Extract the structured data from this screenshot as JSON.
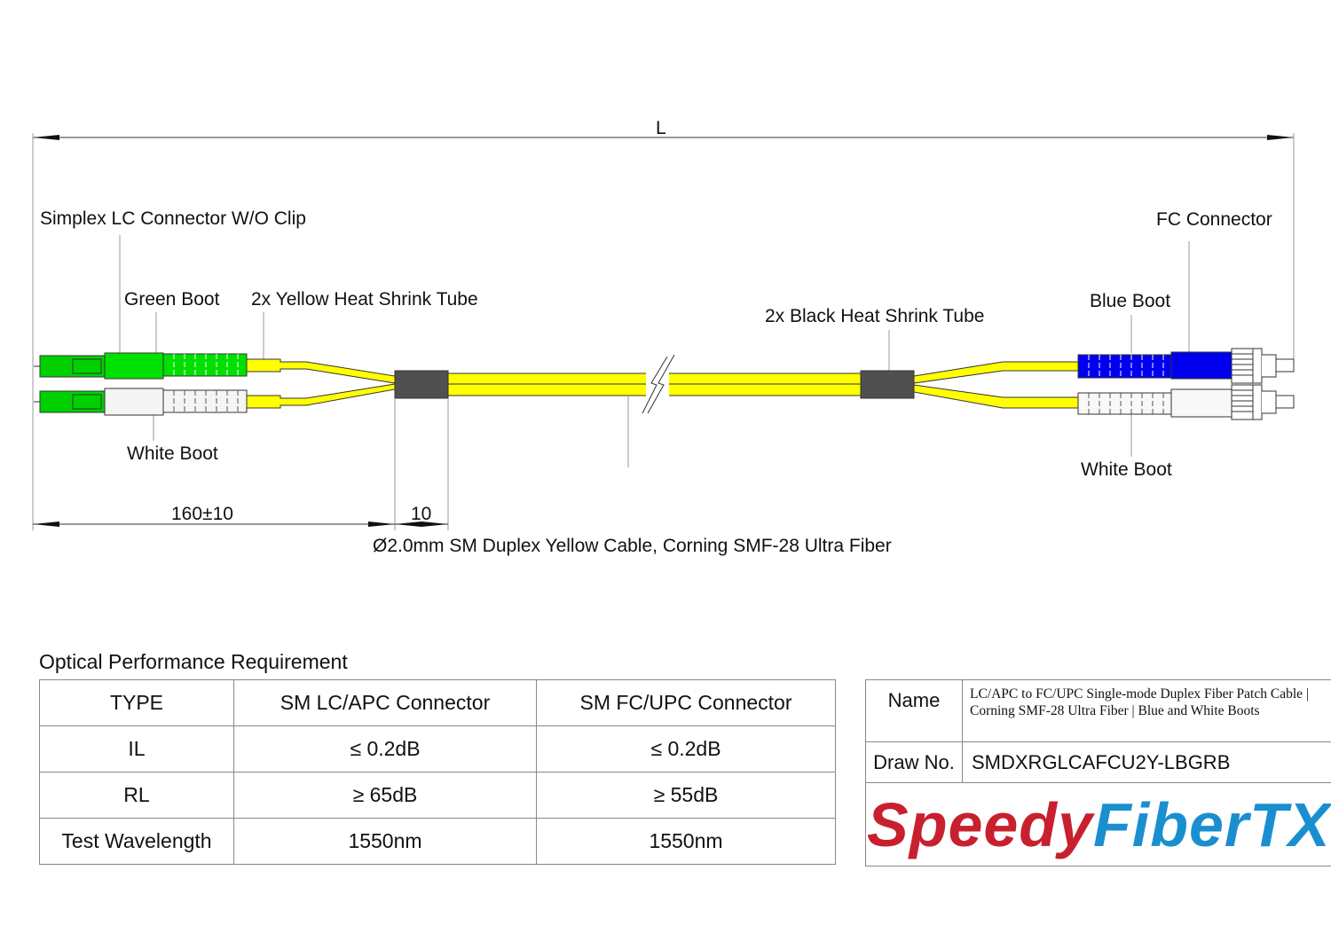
{
  "drawing": {
    "length_label": "L",
    "labels": {
      "lc_connector": "Simplex LC Connector W/O Clip",
      "green_boot": "Green Boot",
      "yellow_tube": "2x Yellow Heat Shrink Tube",
      "black_tube": "2x Black Heat Shrink Tube",
      "blue_boot": "Blue Boot",
      "fc_connector": "FC Connector",
      "white_boot_left": "White Boot",
      "white_boot_right": "White Boot"
    },
    "dim_breakout": "160±10",
    "dim_tube": "10",
    "cable_caption": "Ø2.0mm SM Duplex Yellow Cable, Corning SMF-28 Ultra Fiber",
    "colors": {
      "cable": "#ffff00",
      "green_boot": "#00e000",
      "blue_boot": "#0000ee",
      "white_boot": "#f5f5f5",
      "black_tube": "#505050"
    }
  },
  "performance": {
    "title": "Optical Performance Requirement",
    "headers": [
      "TYPE",
      "SM LC/APC Connector",
      "SM FC/UPC Connector"
    ],
    "rows": [
      [
        "IL",
        "≤ 0.2dB",
        "≤ 0.2dB"
      ],
      [
        "RL",
        "≥ 65dB",
        "≥ 55dB"
      ],
      [
        "Test Wavelength",
        "1550nm",
        "1550nm"
      ]
    ]
  },
  "titleblock": {
    "name_label": "Name",
    "name_value": "LC/APC to FC/UPC Single-mode Duplex Fiber Patch Cable | Corning SMF-28 Ultra Fiber | Blue and White Boots",
    "draw_label": "Draw No.",
    "draw_value": "SMDXRGLCAFCU2Y-LBGRB",
    "logo": {
      "part1": "Speedy",
      "part2": "FiberTX",
      "color1": "#c8202f",
      "color2": "#1a8fd0"
    }
  }
}
